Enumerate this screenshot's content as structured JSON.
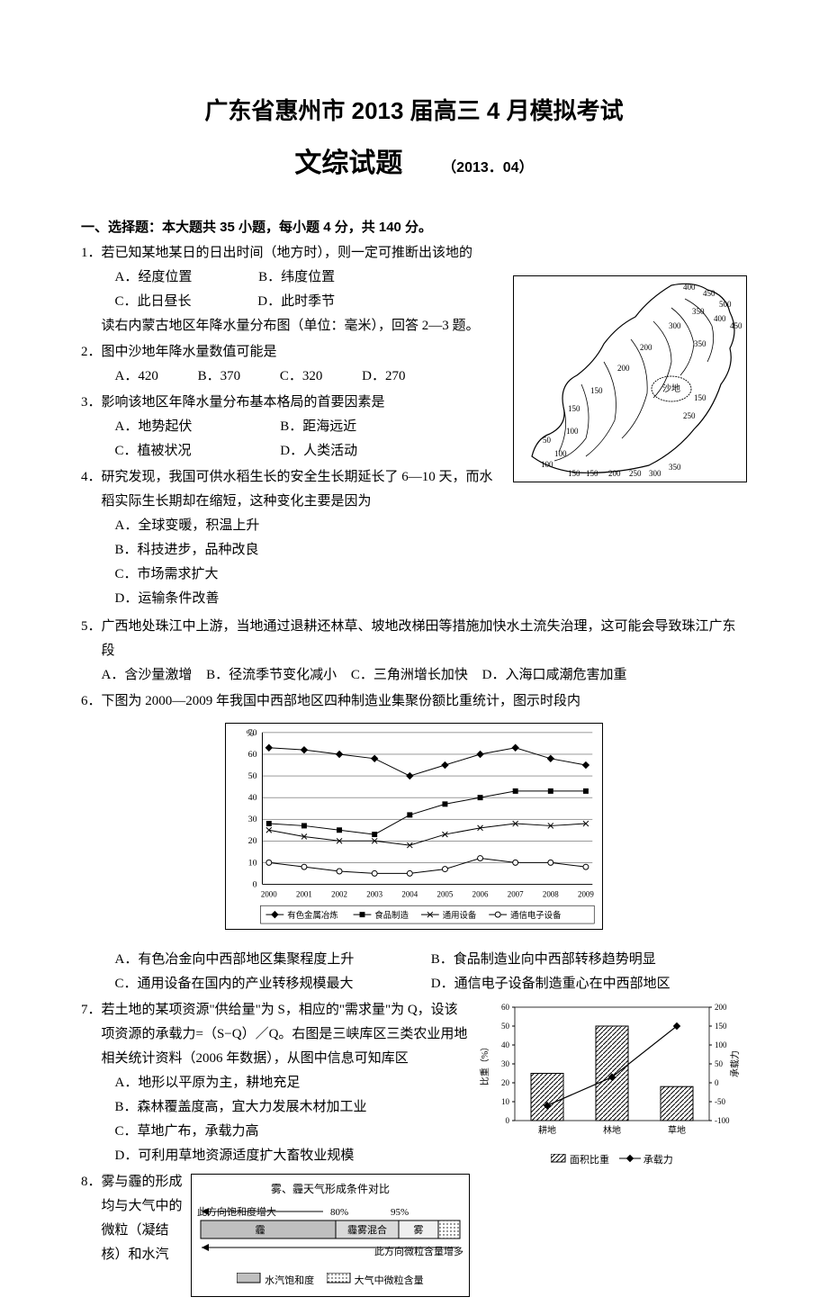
{
  "title": "广东省惠州市 2013 届高三 4 月模拟考试",
  "subtitle": "文综试题",
  "date_note": "（2013．04）",
  "section1_header": "一、选择题：本大题共 35 小题，每小题 4 分，共 140 分。",
  "q1": {
    "num": "1．",
    "stem": "若已知某地某日的日出时间（地方时），则一定可推断出该地的",
    "A": "A．经度位置",
    "B": "B．纬度位置",
    "C": "C．此日昼长",
    "D": "D．此时季节",
    "lead_in": "读右内蒙古地区年降水量分布图（单位：毫米），回答 2—3 题。"
  },
  "q2": {
    "num": "2．",
    "stem": "图中沙地年降水量数值可能是",
    "A": "A．420",
    "B": "B．370",
    "C": "C．320",
    "D": "D．270"
  },
  "q3": {
    "num": "3．",
    "stem": "影响该地区年降水量分布基本格局的首要因素是",
    "A": "A．地势起伏",
    "B": "B．距海远近",
    "C": "C．植被状况",
    "D": "D．人类活动"
  },
  "q4": {
    "num": "4．",
    "stem": "研究发现，我国可供水稻生长的安全生长期延长了 6—10 天，而水稻实际生长期却在缩短，这种变化主要是因为",
    "A": "A．全球变暖，积温上升",
    "B": "B．科技进步，品种改良",
    "C": "C．市场需求扩大",
    "D": "D．运输条件改善"
  },
  "q5": {
    "num": "5．",
    "stem": "广西地处珠江中上游，当地通过退耕还林草、坡地改梯田等措施加快水土流失治理，这可能会导致珠江广东段",
    "A": "A．含沙量激增",
    "B": "B．径流季节变化减小",
    "C": "C．三角洲增长加快",
    "D": "D．入海口咸潮危害加重"
  },
  "q6": {
    "num": "6．",
    "stem": "下图为 2000—2009 年我国中西部地区四种制造业集聚份额比重统计，图示时段内",
    "A": "A．有色冶金向中西部地区集聚程度上升",
    "B": "B．食品制造业向中西部转移趋势明显",
    "C": "C．通用设备在国内的产业转移规模最大",
    "D": "D．通信电子设备制造重心在中西部地区"
  },
  "q7": {
    "num": "7．",
    "stem": "若土地的某项资源\"供给量\"为 S，相应的\"需求量\"为 Q，设该项资源的承载力=（S−Q）／Q。右图是三峡库区三类农业用地相关统计资料（2006 年数据），从图中信息可知库区",
    "A": "A．地形以平原为主，耕地充足",
    "B": "B．森林覆盖度高，宜大力发展木材加工业",
    "C": "C．草地广布，承载力高",
    "D": "D．可利用草地资源适度扩大畜牧业规模"
  },
  "q8": {
    "num": "8．",
    "stem": "雾与霾的形成均与大气中的微粒（凝结核）和水汽"
  },
  "map_fig": {
    "contours": [
      "400",
      "450",
      "500",
      "350",
      "400",
      "450",
      "300",
      "350",
      "200",
      "200",
      "150",
      "250",
      "150",
      "150",
      "50",
      "100",
      "100",
      "100",
      "150",
      "150",
      "200",
      "250",
      "300",
      "350"
    ],
    "label_sand": "沙地"
  },
  "chart6": {
    "type": "line",
    "years": [
      "2000",
      "2001",
      "2002",
      "2003",
      "2004",
      "2005",
      "2006",
      "2007",
      "2008",
      "2009"
    ],
    "ylabel": "%",
    "ylim": [
      0,
      70
    ],
    "ytick_step": 10,
    "series": {
      "metal": {
        "label": "有色金属冶炼",
        "marker": "diamond",
        "values": [
          63,
          62,
          60,
          58,
          50,
          55,
          60,
          63,
          58,
          55
        ]
      },
      "food": {
        "label": "食品制造",
        "marker": "square",
        "values": [
          28,
          27,
          25,
          23,
          32,
          37,
          40,
          43,
          43,
          43
        ]
      },
      "equip": {
        "label": "通用设备",
        "marker": "x",
        "values": [
          25,
          22,
          20,
          20,
          18,
          23,
          26,
          28,
          27,
          28
        ]
      },
      "elec": {
        "label": "通信电子设备",
        "marker": "circle-open",
        "values": [
          10,
          8,
          6,
          5,
          5,
          7,
          12,
          10,
          10,
          8
        ]
      }
    },
    "colors": {
      "line": "#000000",
      "grid": "#000000",
      "bg": "#ffffff"
    }
  },
  "chart7": {
    "type": "bar+line",
    "categories": [
      "耕地",
      "林地",
      "草地"
    ],
    "bar_label": "面积比重",
    "line_label": "承载力",
    "bar_values": [
      25,
      50,
      18
    ],
    "line_values": [
      -60,
      15,
      150
    ],
    "left_label": "比重（%）",
    "right_label": "承载力",
    "left_ylim": [
      0,
      60
    ],
    "left_step": 10,
    "right_ylim": [
      -100,
      200
    ],
    "right_step": 50,
    "colors": {
      "bar_fill": "#ffffff",
      "bar_stroke": "#000000",
      "line": "#000000",
      "bg": "#ffffff"
    }
  },
  "fog_box": {
    "title": "雾、霾天气形成条件对比",
    "left_arrow_label": "此方向饱和度增大",
    "pct80": "80%",
    "pct95": "95%",
    "bands": [
      "霾",
      "霾雾混合",
      "雾"
    ],
    "right_arrow_label": "此方向微粒含量增多",
    "legend_sat": "水汽饱和度",
    "legend_part": "大气中微粒含量",
    "colors": {
      "sat": "#bfbfbf",
      "part_dots": "#000000",
      "border": "#000000"
    }
  }
}
